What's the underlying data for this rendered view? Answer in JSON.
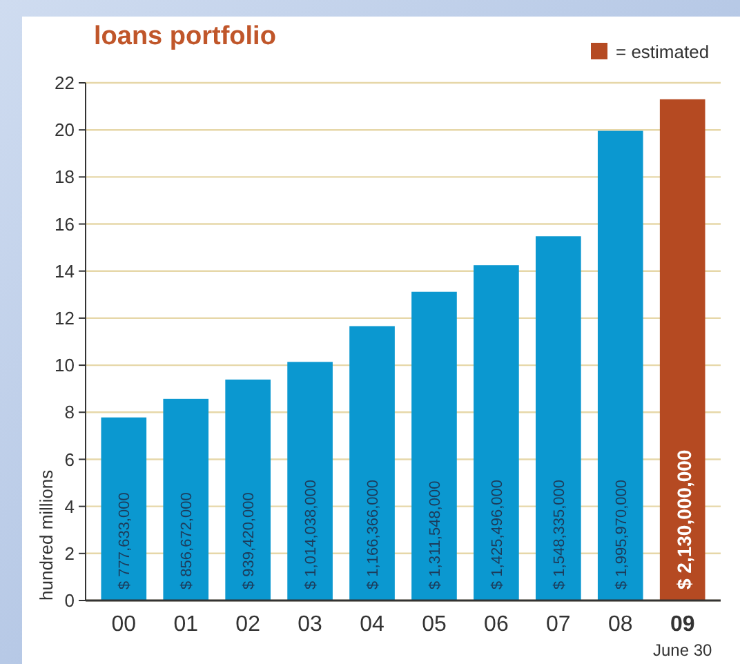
{
  "chart_data": {
    "type": "bar",
    "title": "loans portfolio",
    "ylabel": "hundred millions",
    "categories": [
      "00",
      "01",
      "02",
      "03",
      "04",
      "05",
      "06",
      "07",
      "08",
      "09"
    ],
    "series": [
      {
        "color": "#0b98d0",
        "values": [
          7.78,
          8.57,
          9.39,
          10.14,
          11.66,
          13.12,
          14.25,
          15.48,
          19.96,
          null
        ]
      },
      {
        "name": "= estimated",
        "color": "#b54a22",
        "values": [
          null,
          null,
          null,
          null,
          null,
          null,
          null,
          null,
          null,
          21.3
        ]
      }
    ],
    "ylim": [
      0,
      22
    ],
    "yticks": [
      0,
      2,
      4,
      6,
      8,
      10,
      12,
      14,
      16,
      18,
      20,
      22
    ],
    "grid": "y",
    "legend": "top right",
    "annotations": [
      "$ 777,633,000",
      "$ 856,672,000",
      "$ 939,420,000",
      "$ 1,014,038,000",
      "$ 1,166,366,000",
      "$ 1,311,548,000",
      "$ 1,425,496,000",
      "$ 1,548,335,000",
      "$ 1,995,970,000",
      "$ 2,130,000,000",
      "June 30"
    ]
  }
}
